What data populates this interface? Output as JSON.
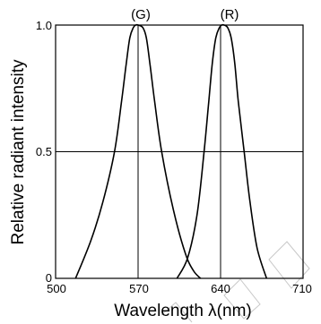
{
  "chart_data": {
    "type": "line",
    "xlabel": "Wavelength λ(nm)",
    "ylabel": "Relative radiant intensity",
    "xlim": [
      500,
      710
    ],
    "ylim": [
      0,
      1.0
    ],
    "x_ticks": [
      "500",
      "570",
      "640",
      "710"
    ],
    "y_ticks": [
      "0",
      "0.5",
      "1.0"
    ],
    "grid": {
      "horizontal": [
        0.5
      ],
      "vertical": [
        570,
        640
      ]
    },
    "series": [
      {
        "name": "(G)",
        "peak_x": 570,
        "x": [
          517,
          530,
          540,
          550,
          556,
          560,
          563,
          566,
          568,
          570,
          574,
          577,
          580,
          584,
          590,
          600,
          610,
          617,
          623
        ],
        "y": [
          0,
          0.15,
          0.3,
          0.5,
          0.7,
          0.85,
          0.95,
          0.99,
          1.0,
          1.0,
          0.99,
          0.95,
          0.85,
          0.7,
          0.5,
          0.27,
          0.1,
          0.03,
          0
        ]
      },
      {
        "name": "(R)",
        "peak_x": 643,
        "x": [
          603,
          612,
          620,
          626,
          630,
          633,
          636,
          639,
          641,
          643,
          646,
          649,
          652,
          655,
          660,
          665,
          671,
          679
        ],
        "y": [
          0,
          0.08,
          0.25,
          0.5,
          0.7,
          0.85,
          0.95,
          0.99,
          1.0,
          1.0,
          0.99,
          0.95,
          0.85,
          0.7,
          0.5,
          0.3,
          0.12,
          0
        ]
      }
    ]
  }
}
